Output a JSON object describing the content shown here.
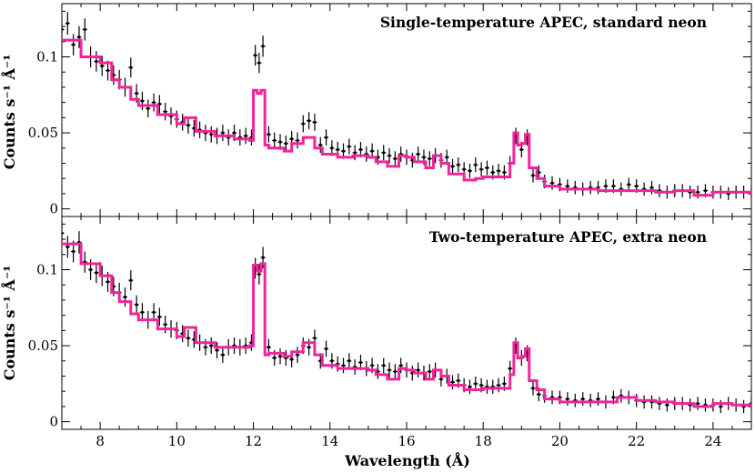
{
  "chart_data": [
    {
      "type": "line",
      "title": "Single-temperature APEC, standard neon",
      "xlabel": "",
      "ylabel": "Counts s⁻¹ Å⁻¹",
      "xlim": [
        7,
        25
      ],
      "ylim": [
        -0.005,
        0.135
      ],
      "x_ticks": [
        "8",
        "10",
        "12",
        "14",
        "16",
        "18",
        "20",
        "22",
        "24"
      ],
      "y_ticks": [
        "0",
        "0.05",
        "0.1"
      ],
      "series": [
        {
          "style": "step",
          "color": "#f0259a",
          "x": [
            7.0,
            7.5,
            8.0,
            8.3,
            8.5,
            8.8,
            9.0,
            9.5,
            10.0,
            10.2,
            10.5,
            11.0,
            11.5,
            11.9,
            12.0,
            12.1,
            12.2,
            12.3,
            12.4,
            12.8,
            13.0,
            13.3,
            13.6,
            13.8,
            14.2,
            14.6,
            15.0,
            15.2,
            15.5,
            15.8,
            16.0,
            16.2,
            16.5,
            16.7,
            16.9,
            17.1,
            17.5,
            17.8,
            18.0,
            18.5,
            18.7,
            18.8,
            18.9,
            19.0,
            19.1,
            19.2,
            19.4,
            19.6,
            20.0,
            21.0,
            22.0,
            22.5,
            23.0,
            23.5,
            24.0,
            24.5,
            25.0
          ],
          "y": [
            0.111,
            0.1,
            0.096,
            0.085,
            0.08,
            0.072,
            0.068,
            0.062,
            0.056,
            0.06,
            0.051,
            0.048,
            0.046,
            0.045,
            0.078,
            0.076,
            0.078,
            0.042,
            0.04,
            0.038,
            0.043,
            0.047,
            0.04,
            0.036,
            0.034,
            0.035,
            0.034,
            0.031,
            0.028,
            0.035,
            0.034,
            0.031,
            0.027,
            0.035,
            0.03,
            0.023,
            0.019,
            0.02,
            0.021,
            0.021,
            0.03,
            0.05,
            0.042,
            0.043,
            0.049,
            0.027,
            0.02,
            0.015,
            0.013,
            0.012,
            0.012,
            0.011,
            0.012,
            0.009,
            0.011,
            0.011,
            0.009
          ]
        },
        {
          "style": "errorbar",
          "color": "#000000",
          "x": [
            7.0,
            7.15,
            7.3,
            7.45,
            7.6,
            7.75,
            7.9,
            8.05,
            8.2,
            8.35,
            8.5,
            8.65,
            8.8,
            8.95,
            9.1,
            9.25,
            9.4,
            9.55,
            9.7,
            9.85,
            10.0,
            10.15,
            10.3,
            10.45,
            10.6,
            10.75,
            10.9,
            11.05,
            11.2,
            11.35,
            11.5,
            11.65,
            11.8,
            11.95,
            12.05,
            12.15,
            12.25,
            12.4,
            12.55,
            12.7,
            12.85,
            13.0,
            13.15,
            13.3,
            13.45,
            13.6,
            13.75,
            13.9,
            14.05,
            14.2,
            14.35,
            14.5,
            14.65,
            14.8,
            14.95,
            15.1,
            15.25,
            15.4,
            15.55,
            15.7,
            15.85,
            16.0,
            16.15,
            16.3,
            16.45,
            16.6,
            16.75,
            16.9,
            17.05,
            17.2,
            17.35,
            17.5,
            17.65,
            17.8,
            17.95,
            18.1,
            18.25,
            18.4,
            18.55,
            18.7,
            18.85,
            19.0,
            19.15,
            19.3,
            19.45,
            19.6,
            19.8,
            20.0,
            20.2,
            20.4,
            20.6,
            20.8,
            21.0,
            21.2,
            21.4,
            21.6,
            21.8,
            22.0,
            22.2,
            22.4,
            22.6,
            22.8,
            23.0,
            23.2,
            23.4,
            23.6,
            23.8,
            24.0,
            24.2,
            24.4,
            24.6,
            24.8,
            25.0
          ],
          "y": [
            0.118,
            0.122,
            0.108,
            0.113,
            0.118,
            0.1,
            0.097,
            0.094,
            0.091,
            0.088,
            0.085,
            0.08,
            0.093,
            0.076,
            0.071,
            0.066,
            0.07,
            0.069,
            0.064,
            0.061,
            0.059,
            0.057,
            0.055,
            0.053,
            0.052,
            0.05,
            0.049,
            0.048,
            0.05,
            0.047,
            0.05,
            0.047,
            0.048,
            0.047,
            0.101,
            0.096,
            0.107,
            0.049,
            0.045,
            0.044,
            0.043,
            0.046,
            0.045,
            0.056,
            0.058,
            0.057,
            0.042,
            0.047,
            0.04,
            0.039,
            0.038,
            0.041,
            0.037,
            0.039,
            0.036,
            0.038,
            0.034,
            0.037,
            0.035,
            0.033,
            0.036,
            0.034,
            0.032,
            0.036,
            0.034,
            0.033,
            0.035,
            0.032,
            0.034,
            0.028,
            0.029,
            0.026,
            0.025,
            0.029,
            0.026,
            0.027,
            0.024,
            0.025,
            0.024,
            0.03,
            0.048,
            0.039,
            0.047,
            0.022,
            0.024,
            0.018,
            0.017,
            0.016,
            0.015,
            0.014,
            0.013,
            0.014,
            0.014,
            0.015,
            0.015,
            0.013,
            0.016,
            0.015,
            0.013,
            0.014,
            0.012,
            0.011,
            0.012,
            0.012,
            0.011,
            0.011,
            0.012,
            0.011,
            0.011,
            0.01,
            0.011,
            0.011,
            0.011
          ]
        }
      ]
    },
    {
      "type": "line",
      "title": "Two-temperature APEC, extra neon",
      "xlabel": "Wavelength (Å)",
      "ylabel": "Counts s⁻¹ Å⁻¹",
      "xlim": [
        7,
        25
      ],
      "ylim": [
        -0.005,
        0.135
      ],
      "x_ticks": [
        "8",
        "10",
        "12",
        "14",
        "16",
        "18",
        "20",
        "22",
        "24"
      ],
      "y_ticks": [
        "0",
        "0.05",
        "0.1"
      ],
      "series": [
        {
          "style": "step",
          "color": "#f0259a",
          "x": [
            7.0,
            7.5,
            8.0,
            8.3,
            8.5,
            8.8,
            9.0,
            9.5,
            10.0,
            10.2,
            10.5,
            11.0,
            11.5,
            11.9,
            12.0,
            12.1,
            12.2,
            12.3,
            12.4,
            12.8,
            13.0,
            13.3,
            13.6,
            13.8,
            14.2,
            14.6,
            15.0,
            15.2,
            15.5,
            15.8,
            16.0,
            16.2,
            16.5,
            16.7,
            16.9,
            17.1,
            17.5,
            17.8,
            18.0,
            18.5,
            18.7,
            18.8,
            18.9,
            19.0,
            19.1,
            19.2,
            19.4,
            19.6,
            20.0,
            21.0,
            21.5,
            22.0,
            22.5,
            23.0,
            23.5,
            24.0,
            24.5,
            25.0
          ],
          "y": [
            0.117,
            0.104,
            0.096,
            0.085,
            0.079,
            0.071,
            0.067,
            0.061,
            0.056,
            0.062,
            0.052,
            0.049,
            0.049,
            0.05,
            0.103,
            0.099,
            0.104,
            0.044,
            0.045,
            0.043,
            0.046,
            0.052,
            0.044,
            0.037,
            0.035,
            0.035,
            0.034,
            0.031,
            0.028,
            0.035,
            0.034,
            0.032,
            0.028,
            0.034,
            0.03,
            0.024,
            0.021,
            0.021,
            0.022,
            0.022,
            0.031,
            0.052,
            0.042,
            0.043,
            0.048,
            0.027,
            0.021,
            0.015,
            0.013,
            0.013,
            0.016,
            0.014,
            0.013,
            0.012,
            0.01,
            0.012,
            0.011,
            0.01
          ]
        },
        {
          "style": "errorbar",
          "color": "#000000",
          "x": [
            7.0,
            7.15,
            7.3,
            7.45,
            7.6,
            7.75,
            7.9,
            8.05,
            8.2,
            8.35,
            8.5,
            8.65,
            8.8,
            8.95,
            9.1,
            9.25,
            9.4,
            9.55,
            9.7,
            9.85,
            10.0,
            10.15,
            10.3,
            10.45,
            10.6,
            10.75,
            10.9,
            11.05,
            11.2,
            11.35,
            11.5,
            11.65,
            11.8,
            11.95,
            12.05,
            12.15,
            12.25,
            12.4,
            12.55,
            12.7,
            12.85,
            13.0,
            13.15,
            13.3,
            13.45,
            13.6,
            13.75,
            13.9,
            14.05,
            14.2,
            14.35,
            14.5,
            14.65,
            14.8,
            14.95,
            15.1,
            15.25,
            15.4,
            15.55,
            15.7,
            15.85,
            16.0,
            16.15,
            16.3,
            16.45,
            16.6,
            16.75,
            16.9,
            17.05,
            17.2,
            17.35,
            17.5,
            17.65,
            17.8,
            17.95,
            18.1,
            18.25,
            18.4,
            18.55,
            18.7,
            18.85,
            19.0,
            19.15,
            19.3,
            19.45,
            19.6,
            19.8,
            20.0,
            20.2,
            20.4,
            20.6,
            20.8,
            21.0,
            21.2,
            21.4,
            21.6,
            21.8,
            22.0,
            22.2,
            22.4,
            22.6,
            22.8,
            23.0,
            23.2,
            23.4,
            23.6,
            23.8,
            24.0,
            24.2,
            24.4,
            24.6,
            24.8,
            25.0
          ],
          "y": [
            0.124,
            0.115,
            0.112,
            0.118,
            0.105,
            0.1,
            0.098,
            0.096,
            0.092,
            0.089,
            0.085,
            0.082,
            0.093,
            0.077,
            0.072,
            0.067,
            0.072,
            0.069,
            0.064,
            0.061,
            0.06,
            0.058,
            0.055,
            0.054,
            0.052,
            0.049,
            0.05,
            0.047,
            0.044,
            0.049,
            0.05,
            0.049,
            0.05,
            0.052,
            0.101,
            0.097,
            0.108,
            0.049,
            0.042,
            0.043,
            0.042,
            0.041,
            0.044,
            0.05,
            0.049,
            0.055,
            0.04,
            0.048,
            0.04,
            0.038,
            0.037,
            0.04,
            0.036,
            0.039,
            0.035,
            0.037,
            0.033,
            0.037,
            0.034,
            0.033,
            0.037,
            0.034,
            0.032,
            0.034,
            0.032,
            0.033,
            0.034,
            0.028,
            0.03,
            0.026,
            0.027,
            0.024,
            0.023,
            0.025,
            0.024,
            0.023,
            0.023,
            0.024,
            0.025,
            0.035,
            0.05,
            0.042,
            0.045,
            0.022,
            0.018,
            0.017,
            0.016,
            0.016,
            0.015,
            0.014,
            0.015,
            0.014,
            0.015,
            0.013,
            0.016,
            0.017,
            0.016,
            0.014,
            0.013,
            0.013,
            0.012,
            0.011,
            0.012,
            0.012,
            0.011,
            0.012,
            0.011,
            0.011,
            0.01,
            0.012,
            0.011,
            0.01,
            0.012
          ]
        }
      ]
    }
  ]
}
